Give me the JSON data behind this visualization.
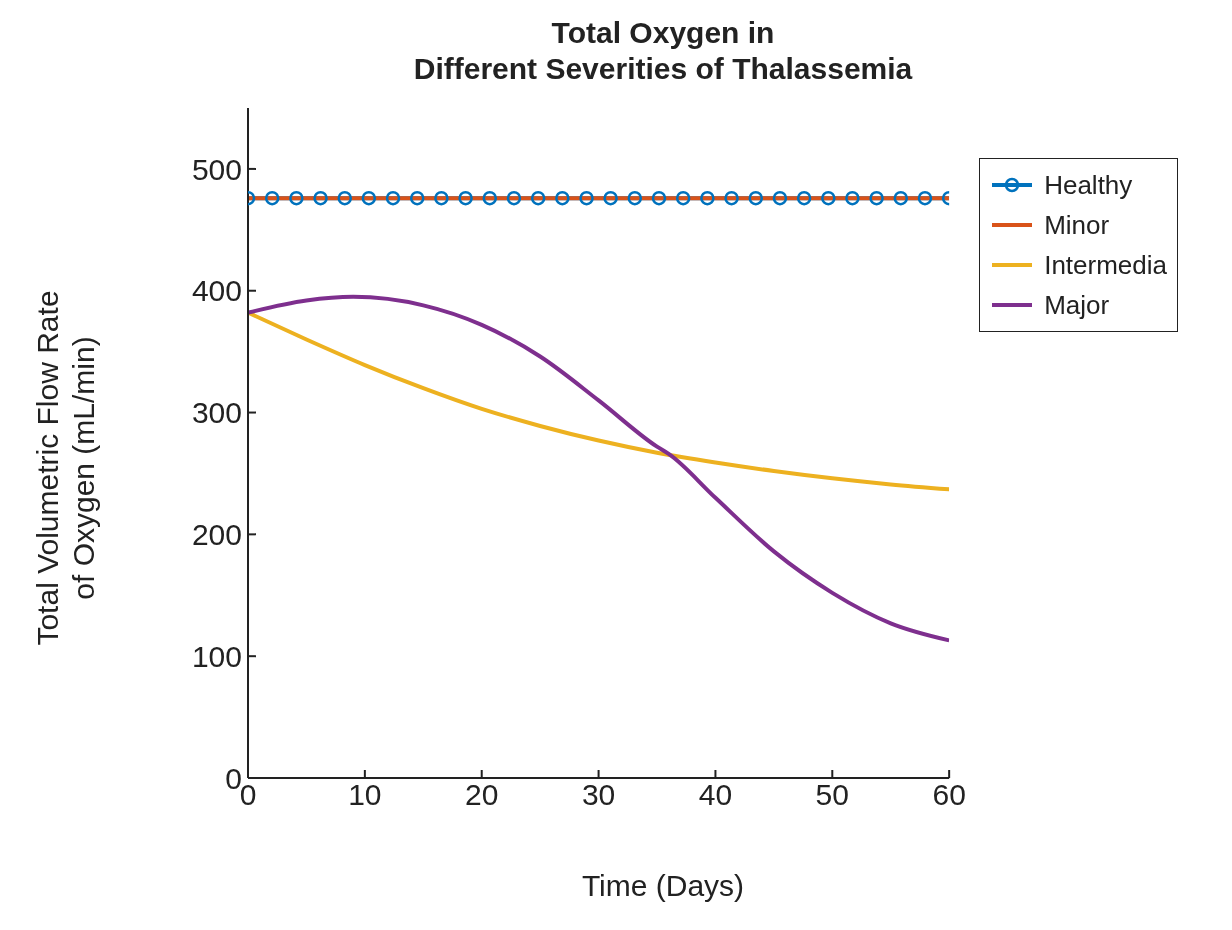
{
  "chart_data": {
    "type": "line",
    "title": "Total Oxygen in\nDifferent Severities of Thalassemia",
    "xlabel": "Time (Days)",
    "ylabel": "Total Volumetric Flow Rate\nof Oxygen (mL/min)",
    "xlim": [
      0,
      60
    ],
    "xticks": [
      0,
      10,
      20,
      30,
      40,
      50,
      60
    ],
    "ylim": [
      0,
      550
    ],
    "yticks": [
      0,
      100,
      200,
      300,
      400,
      500
    ],
    "grid": false,
    "legend": "top right",
    "line_style": "solid",
    "series": [
      {
        "name": "Healthy",
        "color": "#0072bd",
        "marker": "circle",
        "x": [
          0,
          2.07,
          4.14,
          6.21,
          8.28,
          10.34,
          12.41,
          14.48,
          16.55,
          18.62,
          20.69,
          22.76,
          24.83,
          26.9,
          28.97,
          31.03,
          33.1,
          35.17,
          37.24,
          39.31,
          41.38,
          43.45,
          45.52,
          47.59,
          49.66,
          51.72,
          53.79,
          55.86,
          57.93,
          60
        ],
        "values": [
          476,
          476,
          476,
          476,
          476,
          476,
          476,
          476,
          476,
          476,
          476,
          476,
          476,
          476,
          476,
          476,
          476,
          476,
          476,
          476,
          476,
          476,
          476,
          476,
          476,
          476,
          476,
          476,
          476,
          476
        ]
      },
      {
        "name": "Minor",
        "color": "#d95319",
        "marker": "none",
        "x": [
          0,
          60
        ],
        "values": [
          476,
          476
        ]
      },
      {
        "name": "Intermedia",
        "color": "#edb120",
        "marker": "none",
        "x": [
          0,
          5,
          10,
          15,
          20,
          25,
          30,
          35,
          40,
          45,
          50,
          55,
          60
        ],
        "values": [
          382,
          360,
          339,
          320,
          303,
          289,
          277,
          267,
          259,
          252,
          246,
          241,
          237
        ]
      },
      {
        "name": "Major",
        "color": "#7e2f8e",
        "marker": "none",
        "x": [
          0,
          5,
          9,
          15,
          20,
          25,
          30,
          35,
          36,
          40,
          45,
          50,
          55,
          60
        ],
        "values": [
          382,
          392,
          395,
          388,
          372,
          346,
          310,
          272,
          266,
          230,
          186,
          152,
          127,
          113
        ]
      }
    ]
  }
}
